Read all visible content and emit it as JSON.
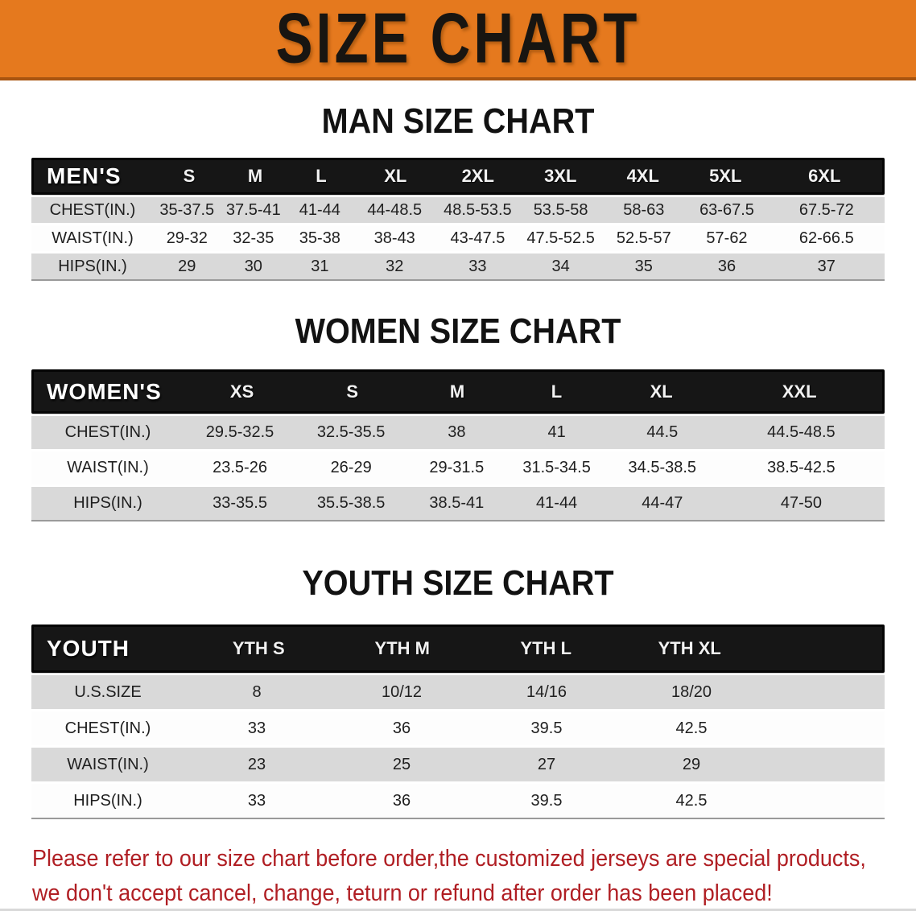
{
  "banner": {
    "title": "SIZE CHART",
    "bg_color": "#e5791e",
    "text_color": "#181511"
  },
  "chart_data": [
    {
      "type": "table",
      "title": "MAN SIZE CHART",
      "corner_label": "MEN'S",
      "columns": [
        "S",
        "M",
        "L",
        "XL",
        "2XL",
        "3XL",
        "4XL",
        "5XL",
        "6XL"
      ],
      "rows": [
        {
          "label": "CHEST(IN.)",
          "values": [
            "35-37.5",
            "37.5-41",
            "41-44",
            "44-48.5",
            "48.5-53.5",
            "53.5-58",
            "58-63",
            "63-67.5",
            "67.5-72"
          ]
        },
        {
          "label": "WAIST(IN.)",
          "values": [
            "29-32",
            "32-35",
            "35-38",
            "38-43",
            "43-47.5",
            "47.5-52.5",
            "52.5-57",
            "57-62",
            "62-66.5"
          ]
        },
        {
          "label": "HIPS(IN.)",
          "values": [
            "29",
            "30",
            "31",
            "32",
            "33",
            "34",
            "35",
            "36",
            "37"
          ]
        }
      ]
    },
    {
      "type": "table",
      "title": "WOMEN SIZE CHART",
      "corner_label": "WOMEN'S",
      "columns": [
        "XS",
        "S",
        "M",
        "L",
        "XL",
        "XXL"
      ],
      "rows": [
        {
          "label": "CHEST(IN.)",
          "values": [
            "29.5-32.5",
            "32.5-35.5",
            "38",
            "41",
            "44.5",
            "44.5-48.5"
          ]
        },
        {
          "label": "WAIST(IN.)",
          "values": [
            "23.5-26",
            "26-29",
            "29-31.5",
            "31.5-34.5",
            "34.5-38.5",
            "38.5-42.5"
          ]
        },
        {
          "label": "HIPS(IN.)",
          "values": [
            "33-35.5",
            "35.5-38.5",
            "38.5-41",
            "41-44",
            "44-47",
            "47-50"
          ]
        }
      ]
    },
    {
      "type": "table",
      "title": "YOUTH SIZE CHART",
      "corner_label": "YOUTH",
      "columns": [
        "YTH S",
        "YTH M",
        "YTH L",
        "YTH XL"
      ],
      "rows": [
        {
          "label": "U.S.SIZE",
          "values": [
            "8",
            "10/12",
            "14/16",
            "18/20"
          ]
        },
        {
          "label": "CHEST(IN.)",
          "values": [
            "33",
            "36",
            "39.5",
            "42.5"
          ]
        },
        {
          "label": "WAIST(IN.)",
          "values": [
            "23",
            "25",
            "27",
            "29"
          ]
        },
        {
          "label": "HIPS(IN.)",
          "values": [
            "33",
            "36",
            "39.5",
            "42.5"
          ]
        }
      ]
    }
  ],
  "notice": {
    "color": "#b01e23",
    "lines": [
      "Please refer to our size chart before order,the customized jerseys are special products,",
      "we don't accept cancel, change, teturn or refund after order has been placed!"
    ]
  }
}
